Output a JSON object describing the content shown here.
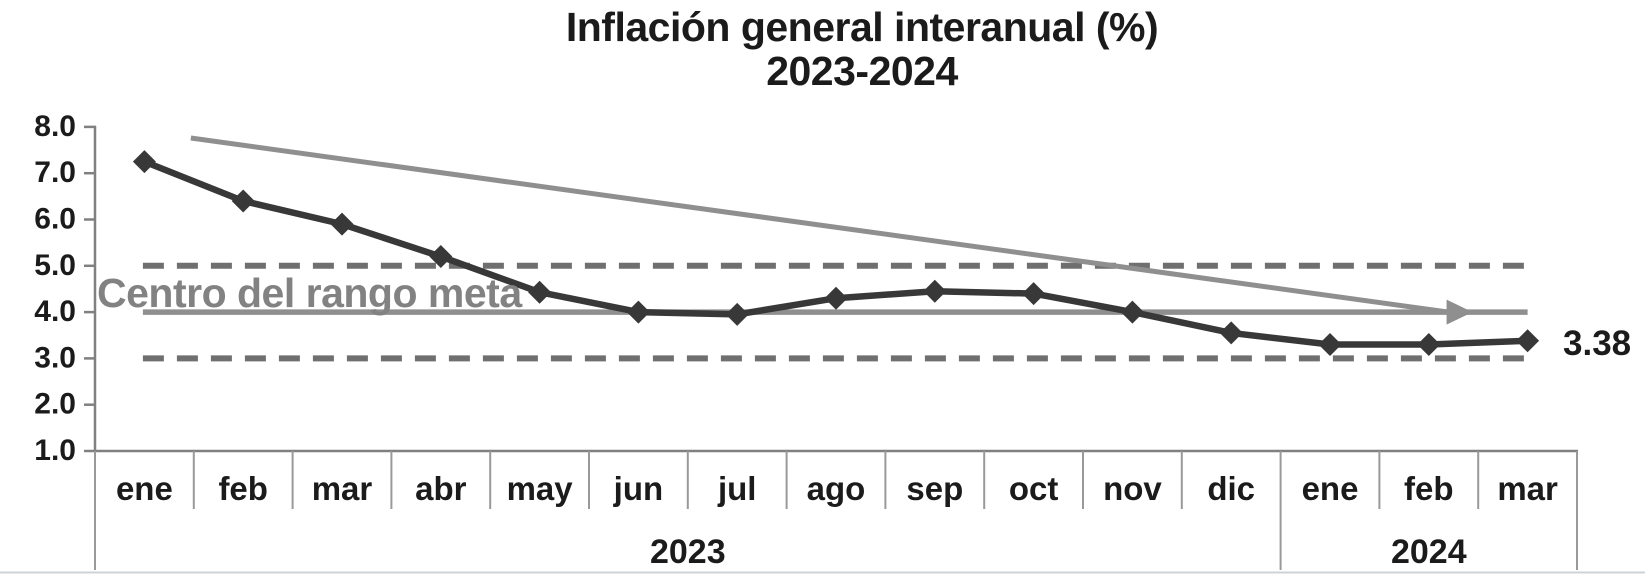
{
  "title": {
    "line1": "Inflación general interanual (%)",
    "line2": "2023-2024"
  },
  "labels": {
    "target_center": "Centro del rango meta",
    "last_value": "3.38"
  },
  "chart_data": {
    "type": "line",
    "title": "Inflación general interanual (%)",
    "subtitle": "2023-2024",
    "categories": [
      "ene",
      "feb",
      "mar",
      "abr",
      "may",
      "jun",
      "jul",
      "ago",
      "sep",
      "oct",
      "nov",
      "dic",
      "ene",
      "feb",
      "mar"
    ],
    "year_groups": [
      {
        "label": "2023",
        "from": 0,
        "to": 11
      },
      {
        "label": "2024",
        "from": 12,
        "to": 14
      }
    ],
    "series": [
      {
        "name": "Inflación general interanual (%)",
        "values": [
          7.25,
          6.4,
          5.9,
          5.2,
          4.43,
          4.0,
          3.95,
          4.3,
          4.45,
          4.4,
          4.0,
          3.55,
          3.3,
          3.3,
          3.38
        ],
        "color": "#383838",
        "marker": "diamond",
        "last_point_label": "3.38"
      }
    ],
    "reference_lines": [
      {
        "name": "upper-band",
        "value": 5.0,
        "style": "dashed",
        "color": "#6f6f6f"
      },
      {
        "name": "target-center",
        "value": 4.0,
        "style": "solid",
        "color": "#8f8f8f",
        "label": "Centro del rango meta"
      },
      {
        "name": "lower-band",
        "value": 3.0,
        "style": "dashed",
        "color": "#6f6f6f"
      }
    ],
    "trend_arrow": {
      "from": {
        "x_index": 0.47,
        "value": 7.76
      },
      "to": {
        "x_index": 13.2,
        "value": 4.0
      },
      "arrowhead": true,
      "color": "#8f8f8f"
    },
    "ytick_labels": [
      "8.0",
      "7.0",
      "6.0",
      "5.0",
      "4.0",
      "3.0",
      "2.0",
      "1.0"
    ],
    "yticks": [
      8.0,
      7.0,
      6.0,
      5.0,
      4.0,
      3.0,
      2.0,
      1.0
    ],
    "ylim": [
      1.0,
      8.0
    ],
    "grid": false,
    "legend": "none"
  }
}
